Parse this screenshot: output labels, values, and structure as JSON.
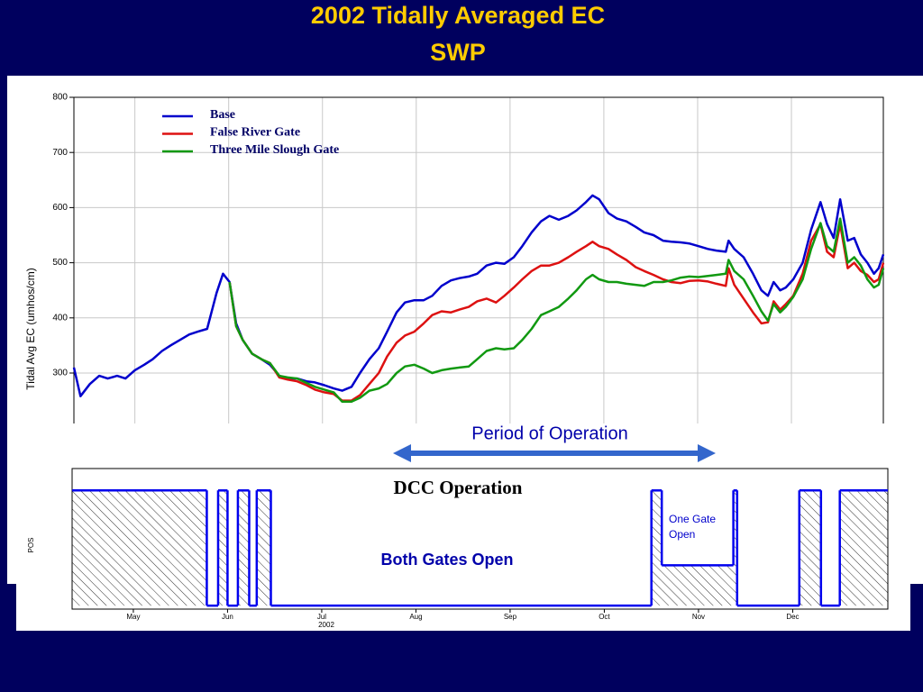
{
  "title": "2002 Tidally Averaged EC",
  "subtitle": "SWP",
  "chart_data": [
    {
      "type": "line",
      "ylabel": "Tidal Avg EC (umhos/cm)",
      "xlim": [
        4.35,
        12.98
      ],
      "xticks": [
        5,
        6,
        7,
        8,
        9,
        10,
        11,
        12
      ],
      "ylim": [
        208.5,
        800
      ],
      "yticks": [
        300,
        400,
        500,
        600,
        700,
        800
      ],
      "grid": true,
      "legend": "upper left",
      "x": [
        4.35,
        4.42,
        4.52,
        4.62,
        4.71,
        4.81,
        4.9,
        5.0,
        5.1,
        5.19,
        5.29,
        5.38,
        5.48,
        5.58,
        5.67,
        5.77,
        5.87,
        5.94,
        6.01,
        6.08,
        6.15,
        6.25,
        6.35,
        6.44,
        6.54,
        6.63,
        6.73,
        6.83,
        6.92,
        7.02,
        7.12,
        7.21,
        7.31,
        7.4,
        7.5,
        7.6,
        7.69,
        7.79,
        7.88,
        7.98,
        8.08,
        8.17,
        8.27,
        8.37,
        8.46,
        8.56,
        8.65,
        8.75,
        8.85,
        8.94,
        9.04,
        9.13,
        9.23,
        9.33,
        9.42,
        9.52,
        9.62,
        9.71,
        9.81,
        9.88,
        9.95,
        10.05,
        10.14,
        10.24,
        10.34,
        10.43,
        10.53,
        10.63,
        10.72,
        10.82,
        10.91,
        11.01,
        11.11,
        11.2,
        11.3,
        11.33,
        11.39,
        11.49,
        11.59,
        11.68,
        11.75,
        11.81,
        11.88,
        11.94,
        12.02,
        12.12,
        12.21,
        12.31,
        12.38,
        12.45,
        12.52,
        12.6,
        12.67,
        12.74,
        12.81,
        12.88,
        12.93,
        12.98
      ],
      "series": [
        {
          "name": "Base",
          "color": "#0000cc",
          "values": [
            310,
            258,
            280,
            295,
            290,
            295,
            290,
            305,
            315,
            325,
            340,
            350,
            360,
            370,
            375,
            380,
            445,
            480,
            465,
            390,
            360,
            335,
            325,
            315,
            295,
            290,
            290,
            285,
            283,
            278,
            272,
            268,
            275,
            300,
            325,
            345,
            375,
            410,
            428,
            432,
            432,
            440,
            458,
            468,
            472,
            475,
            480,
            495,
            500,
            498,
            510,
            530,
            555,
            575,
            585,
            578,
            585,
            595,
            610,
            622,
            615,
            590,
            580,
            575,
            565,
            555,
            550,
            540,
            538,
            537,
            535,
            530,
            525,
            522,
            520,
            540,
            525,
            510,
            480,
            450,
            440,
            465,
            450,
            455,
            470,
            500,
            560,
            610,
            570,
            545,
            615,
            540,
            545,
            515,
            500,
            480,
            490,
            515
          ]
        },
        {
          "name": "False River Gate",
          "color": "#dd1111",
          "values": [
            null,
            null,
            null,
            null,
            null,
            null,
            null,
            null,
            null,
            null,
            null,
            null,
            null,
            null,
            null,
            null,
            null,
            null,
            465,
            385,
            360,
            335,
            325,
            318,
            292,
            288,
            285,
            278,
            270,
            265,
            262,
            250,
            250,
            260,
            280,
            300,
            330,
            355,
            368,
            375,
            390,
            405,
            412,
            410,
            415,
            420,
            430,
            435,
            428,
            440,
            455,
            470,
            485,
            495,
            495,
            500,
            510,
            520,
            530,
            538,
            530,
            525,
            515,
            505,
            492,
            485,
            478,
            470,
            465,
            463,
            467,
            468,
            466,
            462,
            458,
            490,
            460,
            435,
            410,
            390,
            392,
            430,
            415,
            425,
            440,
            480,
            540,
            570,
            520,
            510,
            570,
            490,
            500,
            485,
            478,
            465,
            470,
            500
          ]
        },
        {
          "name": "Three Mile Slough Gate",
          "color": "#119911",
          "values": [
            null,
            null,
            null,
            null,
            null,
            null,
            null,
            null,
            null,
            null,
            null,
            null,
            null,
            null,
            null,
            null,
            null,
            null,
            465,
            385,
            360,
            335,
            325,
            318,
            295,
            292,
            290,
            282,
            275,
            270,
            265,
            248,
            248,
            255,
            268,
            272,
            280,
            300,
            312,
            315,
            308,
            300,
            305,
            308,
            310,
            312,
            325,
            340,
            345,
            343,
            345,
            360,
            380,
            405,
            412,
            420,
            435,
            450,
            470,
            478,
            470,
            465,
            465,
            462,
            460,
            458,
            465,
            465,
            468,
            473,
            475,
            474,
            476,
            478,
            480,
            505,
            485,
            470,
            440,
            412,
            395,
            425,
            410,
            420,
            438,
            470,
            525,
            572,
            530,
            520,
            580,
            500,
            510,
            495,
            470,
            455,
            460,
            490
          ]
        }
      ],
      "annotations": [
        "Period of Operation"
      ]
    },
    {
      "type": "step",
      "title": "DCC Operation",
      "ylabel": "POS",
      "xlabel": "2002",
      "xlim": [
        4.35,
        13.01
      ],
      "xticks": [
        {
          "value": 5,
          "label": "May"
        },
        {
          "value": 6,
          "label": "Jun"
        },
        {
          "value": 7,
          "label": "Jul"
        },
        {
          "value": 8,
          "label": "Aug"
        },
        {
          "value": 9,
          "label": "Sep"
        },
        {
          "value": 10,
          "label": "Oct"
        },
        {
          "value": 11,
          "label": "Nov"
        },
        {
          "value": 12,
          "label": "Dec"
        }
      ],
      "ylim": [
        -0.03,
        1.19
      ],
      "color": "#0000ee",
      "steps": [
        {
          "start": 4.35,
          "end": 5.78,
          "value": 1
        },
        {
          "start": 5.78,
          "end": 5.9,
          "value": 0
        },
        {
          "start": 5.9,
          "end": 6.0,
          "value": 1
        },
        {
          "start": 6.0,
          "end": 6.11,
          "value": 0
        },
        {
          "start": 6.11,
          "end": 6.23,
          "value": 1
        },
        {
          "start": 6.23,
          "end": 6.31,
          "value": 0
        },
        {
          "start": 6.31,
          "end": 6.46,
          "value": 1
        },
        {
          "start": 6.46,
          "end": 10.5,
          "value": 0
        },
        {
          "start": 10.5,
          "end": 10.61,
          "value": 1
        },
        {
          "start": 10.61,
          "end": 11.37,
          "value": 0.35
        },
        {
          "start": 11.37,
          "end": 11.41,
          "value": 1
        },
        {
          "start": 11.41,
          "end": 12.07,
          "value": 0
        },
        {
          "start": 12.07,
          "end": 12.3,
          "value": 1
        },
        {
          "start": 12.3,
          "end": 12.5,
          "value": 0
        },
        {
          "start": 12.5,
          "end": 13.01,
          "value": 1
        }
      ],
      "annotations": [
        "One Gate Open",
        "Both Gates Open"
      ]
    }
  ]
}
